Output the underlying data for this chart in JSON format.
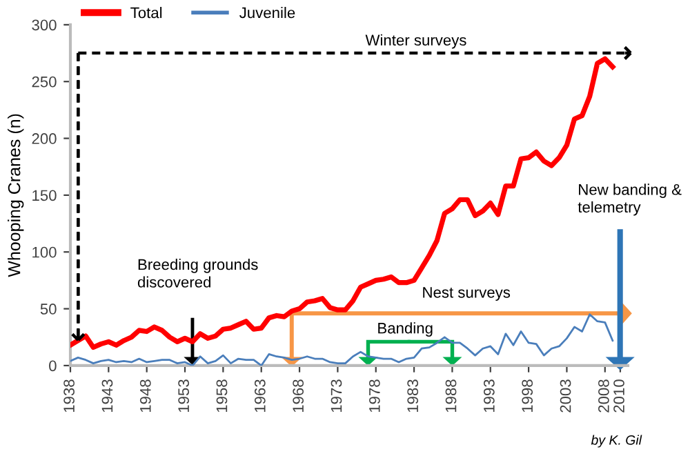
{
  "chart_data": {
    "type": "line",
    "ylabel": "Whooping Cranes (n)",
    "x": [
      1938,
      1939,
      1940,
      1941,
      1942,
      1943,
      1944,
      1945,
      1946,
      1947,
      1948,
      1949,
      1950,
      1951,
      1952,
      1953,
      1954,
      1955,
      1956,
      1957,
      1958,
      1959,
      1960,
      1961,
      1962,
      1963,
      1964,
      1965,
      1966,
      1967,
      1968,
      1969,
      1970,
      1971,
      1972,
      1973,
      1974,
      1975,
      1976,
      1977,
      1978,
      1979,
      1980,
      1981,
      1982,
      1983,
      1984,
      1985,
      1986,
      1987,
      1988,
      1989,
      1990,
      1991,
      1992,
      1993,
      1994,
      1995,
      1996,
      1997,
      1998,
      1999,
      2000,
      2001,
      2002,
      2003,
      2004,
      2005,
      2006,
      2007,
      2008,
      2009
    ],
    "series": [
      {
        "name": "Total",
        "color": "#ff0000",
        "values": [
          18,
          22,
          26,
          16,
          19,
          21,
          18,
          22,
          25,
          31,
          30,
          34,
          31,
          25,
          21,
          24,
          21,
          28,
          24,
          26,
          32,
          33,
          36,
          39,
          32,
          33,
          42,
          44,
          43,
          48,
          50,
          56,
          57,
          59,
          51,
          49,
          49,
          57,
          69,
          72,
          75,
          76,
          78,
          73,
          73,
          75,
          86,
          97,
          110,
          134,
          138,
          146,
          146,
          132,
          136,
          143,
          133,
          158,
          158,
          182,
          183,
          188,
          180,
          176,
          183,
          194,
          217,
          220,
          237,
          266,
          270,
          263
        ]
      },
      {
        "name": "Juvenile",
        "color": "#4a7ebb",
        "values": [
          4,
          7,
          5,
          2,
          4,
          5,
          3,
          4,
          3,
          6,
          3,
          4,
          5,
          5,
          2,
          3,
          0,
          8,
          2,
          4,
          9,
          2,
          6,
          5,
          5,
          0,
          10,
          8,
          7,
          5,
          6,
          8,
          6,
          6,
          3,
          2,
          2,
          8,
          12,
          8,
          7,
          6,
          6,
          3,
          6,
          7,
          15,
          16,
          20,
          25,
          20,
          20,
          15,
          9,
          15,
          17,
          10,
          28,
          18,
          30,
          20,
          19,
          9,
          15,
          17,
          24,
          34,
          30,
          45,
          39,
          38,
          22
        ]
      }
    ],
    "xlim": [
      1938,
      2011
    ],
    "xticks": [
      1938,
      1943,
      1948,
      1953,
      1958,
      1963,
      1968,
      1973,
      1978,
      1983,
      1988,
      1993,
      1998,
      2003,
      2008,
      2010
    ],
    "ylim": [
      0,
      300
    ],
    "yticks": [
      0,
      50,
      100,
      150,
      200,
      250,
      300
    ],
    "grid": false,
    "legend": "top left",
    "annotations": [
      "Winter surveys",
      "Breeding grounds\ndiscovered",
      "Nest surveys",
      "Banding",
      "New banding &\ntelemetry",
      "by K. Gil"
    ]
  }
}
